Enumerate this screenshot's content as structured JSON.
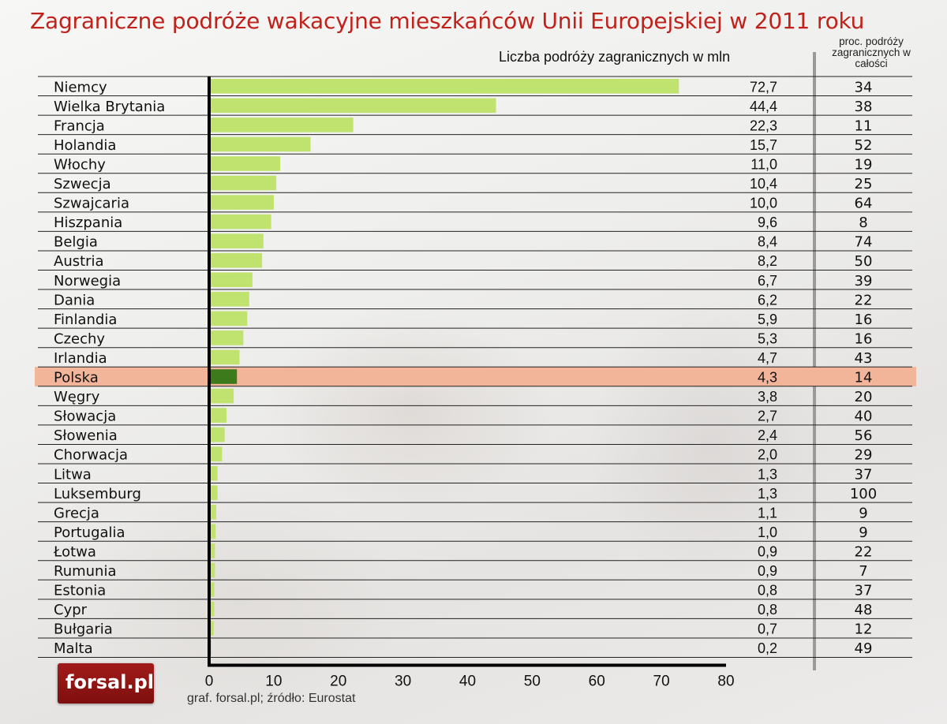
{
  "header": {
    "title": "Zagraniczne podróże wakacyjne mieszkańców Unii Europejskiej w 2011 roku",
    "subtitle_left": "Liczba podróży zagranicznych w mln",
    "subtitle_right": "proc. podróży zagranicznych w całości"
  },
  "footer": {
    "source": "graf. forsal.pl;  źródło: Eurostat"
  },
  "logo": {
    "text": "forsal.pl"
  },
  "colors": {
    "title": "#c0211b",
    "bar": "#bfe36e",
    "highlight_bar": "#3d7a1c",
    "highlight_row": "#f2b59a"
  },
  "chart_data": {
    "type": "bar",
    "orientation": "horizontal",
    "categories": [
      "Niemcy",
      "Wielka Brytania",
      "Francja",
      "Holandia",
      "Włochy",
      "Szwecja",
      "Szwajcaria",
      "Hiszpania",
      "Belgia",
      "Austria",
      "Norwegia",
      "Dania",
      "Finlandia",
      "Czechy",
      "Irlandia",
      "Polska",
      "Węgry",
      "Słowacja",
      "Słowenia",
      "Chorwacja",
      "Litwa",
      "Luksemburg",
      "Grecja",
      "Portugalia",
      "Łotwa",
      "Rumunia",
      "Estonia",
      "Cypr",
      "Bułgaria",
      "Malta"
    ],
    "values": [
      72.7,
      44.4,
      22.3,
      15.7,
      11.0,
      10.4,
      10.0,
      9.6,
      8.4,
      8.2,
      6.7,
      6.2,
      5.9,
      5.3,
      4.7,
      4.3,
      3.8,
      2.7,
      2.4,
      2.0,
      1.3,
      1.3,
      1.1,
      1.0,
      0.9,
      0.9,
      0.8,
      0.8,
      0.7,
      0.2
    ],
    "value_labels": [
      "72,7",
      "44,4",
      "22,3",
      "15,7",
      "11,0",
      "10,4",
      "10,0",
      "9,6",
      "8,4",
      "8,2",
      "6,7",
      "6,2",
      "5,9",
      "5,3",
      "4,7",
      "4,3",
      "3,8",
      "2,7",
      "2,4",
      "2,0",
      "1,3",
      "1,3",
      "1,1",
      "1,0",
      "0,9",
      "0,9",
      "0,8",
      "0,8",
      "0,7",
      "0,2"
    ],
    "share_percent": [
      34,
      38,
      11,
      52,
      19,
      25,
      64,
      8,
      74,
      50,
      39,
      22,
      16,
      16,
      43,
      14,
      20,
      40,
      56,
      29,
      37,
      100,
      9,
      9,
      22,
      7,
      37,
      48,
      12,
      49
    ],
    "highlight": "Polska",
    "xlim": [
      0,
      80
    ],
    "xticks": [
      "0",
      "10",
      "20",
      "30",
      "40",
      "50",
      "60",
      "70",
      "80"
    ],
    "xlabel": "",
    "ylabel": ""
  }
}
